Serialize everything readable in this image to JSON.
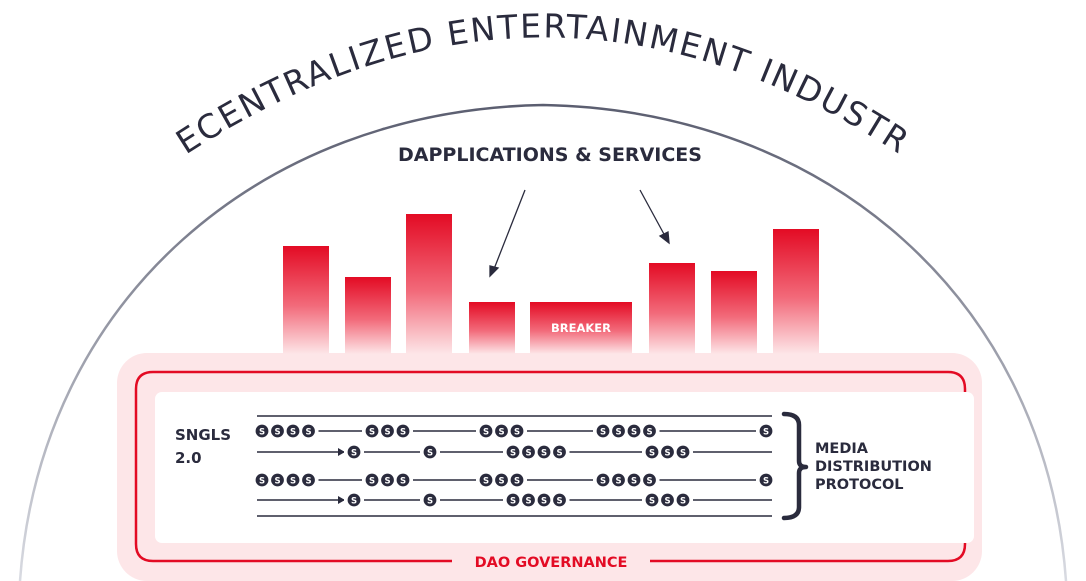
{
  "title": "DECENTRALIZED ENTERTAINMENT INDUSTRY",
  "dapps_label": "DAPPLICATIONS & SERVICES",
  "breaker_label": "BREAKER",
  "sngls_label": [
    "SNGLS",
    "2.0"
  ],
  "media_label": [
    "MEDIA",
    "DISTRIBUTION",
    "PROTOCOL"
  ],
  "dao_label": "DAO GOVERNANCE",
  "coin_symbol": "S",
  "colors": {
    "accent": "#e30b24",
    "accent_light": "#fde6e8",
    "dark": "#2a2b3d",
    "arc": "#7c7f8e"
  },
  "token_rows": [
    {
      "type": "coins",
      "groups": [
        4,
        3,
        3,
        4,
        1
      ]
    },
    {
      "type": "arrow",
      "groups": [
        1,
        1,
        4,
        3
      ]
    },
    {
      "type": "coins",
      "groups": [
        4,
        3,
        3,
        4,
        1
      ]
    },
    {
      "type": "arrow",
      "groups": [
        1,
        1,
        4,
        3
      ]
    }
  ]
}
